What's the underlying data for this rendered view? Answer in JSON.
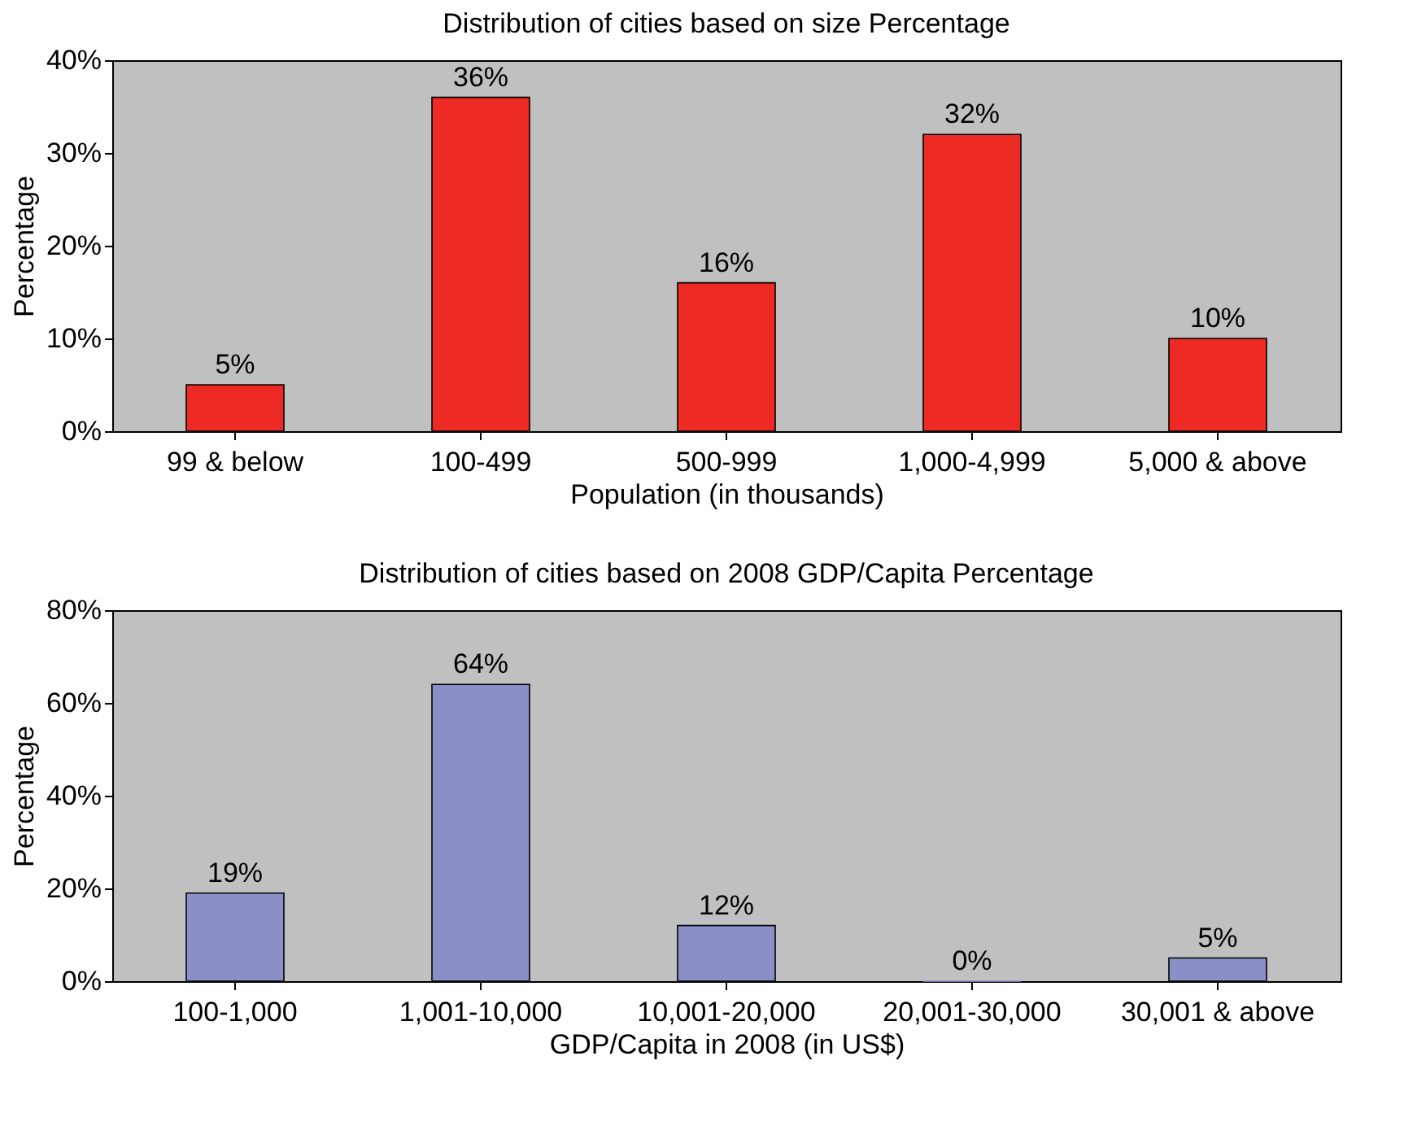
{
  "chart_data": [
    {
      "type": "bar",
      "title": "Distribution of cities based on size Percentage",
      "xlabel": "Population (in thousands)",
      "ylabel": "Percentage",
      "categories": [
        "99 & below",
        "100-499",
        "500-999",
        "1,000-4,999",
        "5,000 & above"
      ],
      "values": [
        5,
        36,
        16,
        32,
        10
      ],
      "value_labels": [
        "5%",
        "36%",
        "16%",
        "32%",
        "10%"
      ],
      "color": "#ee2a24",
      "ylim": [
        0,
        40
      ],
      "yticks": [
        {
          "value": 0,
          "label": "0%"
        },
        {
          "value": 10,
          "label": "10%"
        },
        {
          "value": 20,
          "label": "20%"
        },
        {
          "value": 30,
          "label": "30%"
        },
        {
          "value": 40,
          "label": "40%"
        }
      ],
      "grid": false
    },
    {
      "type": "bar",
      "title": "Distribution of cities based on 2008 GDP/Capita Percentage",
      "xlabel": "GDP/Capita in 2008 (in US$)",
      "ylabel": "Percentage",
      "categories": [
        "100-1,000",
        "1,001-10,000",
        "10,001-20,000",
        "20,001-30,000",
        "30,001 & above"
      ],
      "values": [
        19,
        64,
        12,
        0,
        5
      ],
      "value_labels": [
        "19%",
        "64%",
        "12%",
        "0%",
        "5%"
      ],
      "color": "#8a8fc8",
      "ylim": [
        0,
        80
      ],
      "yticks": [
        {
          "value": 0,
          "label": "0%"
        },
        {
          "value": 20,
          "label": "20%"
        },
        {
          "value": 40,
          "label": "40%"
        },
        {
          "value": 60,
          "label": "60%"
        },
        {
          "value": 80,
          "label": "80%"
        }
      ],
      "grid": false
    }
  ]
}
